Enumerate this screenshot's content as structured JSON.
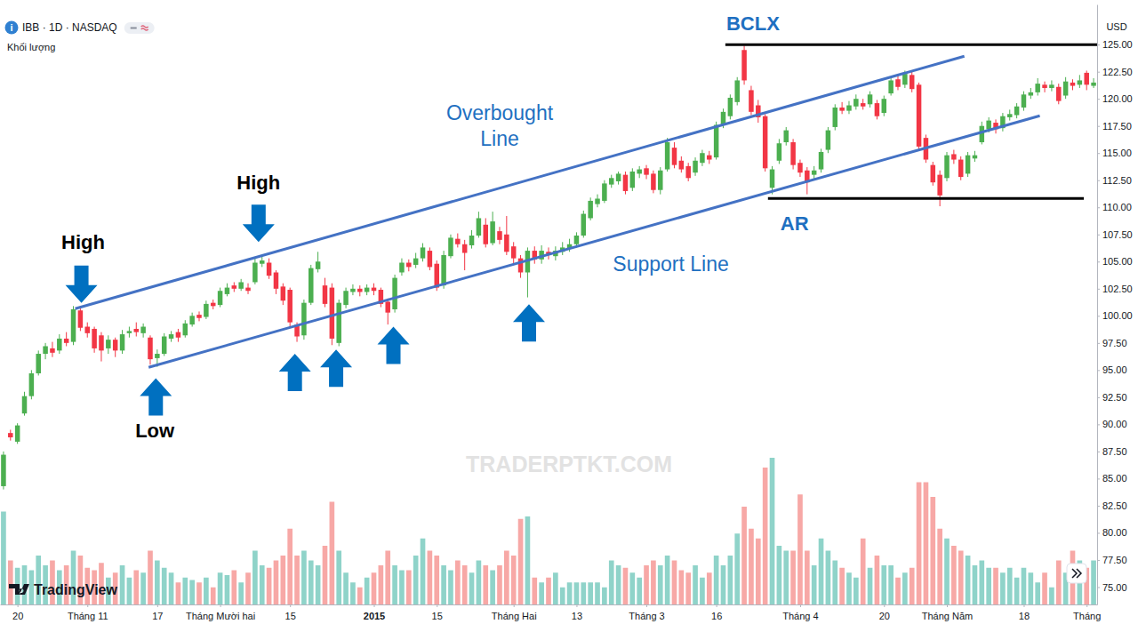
{
  "chart_data": {
    "type": "candlestick",
    "title": "IBB · 1D · NASDAQ",
    "icon": "i",
    "ylabel": "USD",
    "watermark": "TRADERPTKT.COM",
    "logo": "TradingView",
    "categories": [
      null,
      null,
      "20",
      null,
      null,
      null,
      null,
      null,
      null,
      null,
      null,
      null,
      "Tháng 11",
      null,
      null,
      null,
      null,
      null,
      null,
      null,
      null,
      null,
      "17",
      null,
      null,
      null,
      null,
      null,
      null,
      null,
      null,
      "Tháng Mười hai",
      null,
      null,
      null,
      null,
      null,
      null,
      null,
      null,
      null,
      "15",
      null,
      null,
      null,
      null,
      null,
      null,
      null,
      null,
      null,
      null,
      null,
      "2015",
      null,
      null,
      null,
      null,
      null,
      null,
      null,
      null,
      "15",
      null,
      null,
      null,
      null,
      null,
      null,
      null,
      null,
      null,
      null,
      "Tháng Hai",
      null,
      null,
      null,
      null,
      null,
      null,
      null,
      null,
      "13",
      null,
      null,
      null,
      null,
      null,
      null,
      null,
      null,
      null,
      "Tháng 3",
      null,
      null,
      null,
      null,
      null,
      null,
      null,
      null,
      null,
      "16",
      null,
      null,
      null,
      null,
      null,
      null,
      null,
      null,
      null,
      null,
      null,
      "Tháng 4",
      null,
      null,
      null,
      null,
      null,
      null,
      null,
      null,
      null,
      null,
      null,
      "20",
      null,
      null,
      null,
      null,
      null,
      null,
      null,
      null,
      "Tháng Năm",
      null,
      null,
      null,
      null,
      null,
      null,
      null,
      null,
      null,
      null,
      "18",
      null,
      null,
      null,
      null,
      null,
      null,
      null,
      null,
      "Tháng",
      null
    ],
    "series": [
      {
        "type": "candlestick",
        "open": [
          84.3,
          89.2,
          88.4,
          91,
          92.6,
          94.7,
          96.5,
          97,
          96.8,
          97.9,
          97.6,
          100.5,
          99,
          98.8,
          98.2,
          97,
          97.8,
          96.8,
          98.4,
          98.8,
          98.4,
          98,
          96.1,
          96.5,
          97.9,
          98.5,
          98.2,
          99.2,
          100.1,
          99.9,
          101.2,
          101,
          102,
          102.8,
          102.5,
          102.6,
          103.1,
          104.8,
          104.9,
          104,
          102.7,
          102.4,
          99.2,
          98.2,
          101.2,
          104.3,
          102.8,
          102.6,
          97.5,
          101,
          102.2,
          102.5,
          102.2,
          102.6,
          102.4,
          101.3,
          100.6,
          104,
          104.9,
          104.7,
          105.3,
          106,
          104.8,
          102.8,
          105.5,
          107.1,
          106.6,
          106.5,
          107.4,
          108.4,
          106.7,
          107.8,
          107.5,
          106.4,
          105.3,
          104,
          106,
          105.2,
          105.9,
          105.5,
          105.9,
          106.2,
          106.6,
          107.4,
          109,
          110.3,
          110.6,
          112.1,
          112.4,
          113,
          111.8,
          113.1,
          113.6,
          113.1,
          111.6,
          113.5,
          115.5,
          114.3,
          113.8,
          113.2,
          114.1,
          114.8,
          114.6,
          117.6,
          118.4,
          119.7,
          124.5,
          120.8,
          119.4,
          118.4,
          111.8,
          114.3,
          116,
          116,
          114.1,
          113.4,
          113,
          113.5,
          115.3,
          117.4,
          119.2,
          118.9,
          119.3,
          119.6,
          119.5,
          119.6,
          118.7,
          120.5,
          121.8,
          121.3,
          122.2,
          121.3,
          116.4,
          113.9,
          113,
          112.7,
          114.9,
          114.4,
          113.1,
          114.5,
          116,
          117.2,
          117.8,
          117.3,
          118.3,
          118.5,
          119.2,
          120.3,
          120.6,
          121.3,
          121,
          121.1,
          120.3,
          121.5,
          121.3,
          122.4,
          121.2
        ],
        "high": [
          87.5,
          89.5,
          90.1,
          93,
          95,
          96.8,
          97.5,
          97.6,
          98.3,
          98.5,
          100.9,
          100.9,
          99.4,
          99,
          98.5,
          98.2,
          98,
          98.7,
          99,
          99.4,
          99.3,
          98.2,
          96.9,
          98.4,
          98.6,
          98.8,
          99.6,
          100.3,
          100.4,
          101.4,
          101.5,
          102.6,
          103,
          103.1,
          103.4,
          103,
          105.3,
          105.5,
          105.3,
          104.2,
          103,
          102.6,
          99.4,
          101.5,
          104.7,
          105.9,
          103.5,
          103,
          101.5,
          102.6,
          102.9,
          102.8,
          102.9,
          103,
          102.6,
          101.6,
          103.8,
          105.3,
          105.2,
          105.8,
          106.7,
          106.3,
          105.1,
          106,
          107.5,
          107.6,
          107,
          107.9,
          109.6,
          109,
          109.6,
          108.2,
          109.2,
          106.8,
          105.6,
          106.3,
          106.4,
          106.5,
          106.3,
          106.4,
          106.8,
          107.1,
          107.7,
          109.7,
          110.9,
          111.2,
          112.5,
          113,
          113.3,
          113.3,
          113.6,
          113.8,
          113.9,
          113.4,
          113.7,
          116.4,
          116,
          114.7,
          114.1,
          114.6,
          115.3,
          115.2,
          117.9,
          119.1,
          120.4,
          122,
          124.9,
          121.2,
          119.9,
          118.6,
          113.8,
          116.3,
          117.4,
          116.3,
          114.4,
          113.7,
          113.8,
          115.4,
          117.4,
          119.5,
          119.7,
          119.8,
          120.4,
          120,
          120.7,
          119.9,
          120.3,
          122,
          122.2,
          122.6,
          122.5,
          121.5,
          116.7,
          114.2,
          113.4,
          115.1,
          115.3,
          114.7,
          115.1,
          115.2,
          117.9,
          118.3,
          118.1,
          118.7,
          119,
          119.6,
          120.7,
          121,
          121.9,
          121.6,
          121.7,
          121.4,
          122,
          121.8,
          122.2,
          122.6,
          121.9
        ],
        "low": [
          84,
          88.5,
          88.2,
          90.8,
          92.3,
          94.5,
          96,
          96.2,
          96.5,
          97.2,
          97.3,
          98.6,
          98,
          96.6,
          95.8,
          96.5,
          96.2,
          96.5,
          98,
          98.1,
          98,
          95.5,
          95.3,
          96.3,
          97.6,
          97.6,
          98,
          99,
          99.5,
          99.7,
          100.6,
          100.8,
          101.8,
          102.2,
          102.3,
          102,
          102.9,
          104.5,
          103.4,
          102,
          101,
          98.9,
          97.6,
          97.8,
          101,
          104,
          100.8,
          97.3,
          97.2,
          100.7,
          101.9,
          101.8,
          101.9,
          101.9,
          100.8,
          99.2,
          100.3,
          103.7,
          104.1,
          104.4,
          105,
          104.2,
          102.3,
          102.5,
          105.3,
          106.3,
          104.2,
          106.2,
          107.2,
          106.3,
          106.5,
          106.6,
          105.6,
          104.8,
          103.5,
          101.7,
          104.8,
          104.8,
          105.2,
          105.1,
          105.6,
          105.9,
          106.3,
          107.2,
          108.8,
          110,
          110.4,
          111.8,
          112.1,
          111.2,
          111.5,
          112.7,
          112.6,
          111.3,
          111.2,
          113.3,
          113.6,
          113.2,
          112.4,
          112.9,
          113.8,
          114,
          114.4,
          117.3,
          118.1,
          119.4,
          121.3,
          118.5,
          117.8,
          113.3,
          111.2,
          114,
          115.7,
          113.5,
          112.8,
          111.2,
          112.6,
          113.2,
          115,
          117.1,
          118.6,
          118.6,
          119,
          119,
          119.2,
          118.1,
          118.4,
          120.3,
          120.8,
          121,
          120.6,
          115.2,
          114.1,
          112,
          110.1,
          112.4,
          114,
          112.5,
          112.8,
          114.2,
          115.8,
          116.9,
          116.8,
          117,
          118,
          118.2,
          118.9,
          120,
          120.3,
          120.6,
          120.7,
          119.5,
          120,
          120.8,
          121,
          120.8,
          121
        ],
        "close": [
          87.2,
          88.8,
          89.9,
          92.6,
          94.7,
          96.5,
          97.2,
          96.6,
          97.9,
          97.5,
          100.6,
          98.9,
          98.4,
          97,
          96.8,
          97.8,
          96.8,
          98.3,
          98.6,
          98.5,
          99,
          96,
          96.5,
          98.1,
          98.3,
          98,
          99.3,
          100,
          99.8,
          101.1,
          100.9,
          102.3,
          102.6,
          102.5,
          103.1,
          102.3,
          104.9,
          105.1,
          103.7,
          102.5,
          101.4,
          99.4,
          98.1,
          101.2,
          104.4,
          105,
          101.1,
          97.9,
          101.2,
          102.3,
          102.5,
          102.2,
          102.6,
          102.3,
          101.1,
          100.3,
          103.5,
          104.9,
          104.5,
          105.3,
          106.3,
          104.5,
          102.6,
          105.6,
          107.2,
          106.6,
          105.8,
          107.4,
          109,
          106.6,
          108.7,
          107,
          105.9,
          105.3,
          104,
          106,
          105.2,
          106,
          105.6,
          106,
          106.3,
          106.6,
          107.4,
          109.4,
          110.6,
          110.8,
          112.2,
          112.7,
          113.1,
          111.5,
          113.3,
          113.5,
          113,
          111.6,
          113.4,
          116,
          113.9,
          113.5,
          112.7,
          114.3,
          115,
          114.4,
          117.6,
          118.8,
          120.1,
          121.7,
          121.7,
          118.8,
          118.3,
          113.6,
          113.5,
          115.9,
          117.1,
          113.9,
          113.2,
          112.3,
          113.4,
          115.1,
          117.1,
          119.2,
          118.9,
          119.4,
          120,
          119.3,
          120.4,
          118.4,
          120,
          121.7,
          121.1,
          122.3,
          120.9,
          115.6,
          114.4,
          112.3,
          111.1,
          114.8,
          114.4,
          112.8,
          114.8,
          114.8,
          117.5,
          118,
          117.2,
          118.4,
          118.6,
          119.3,
          120.4,
          120.6,
          121.4,
          121,
          121.3,
          119.8,
          121.6,
          121.2,
          121.7,
          121.3,
          121.5
        ]
      },
      {
        "name": "Khối lượng",
        "type": "bar",
        "axis": "y2",
        "values": [
          1.9,
          0.9,
          0.75,
          0.8,
          0.7,
          1.0,
          0.8,
          0.9,
          0.7,
          0.8,
          1.1,
          1.0,
          0.75,
          0.7,
          0.85,
          0.55,
          0.65,
          0.8,
          0.55,
          0.7,
          0.65,
          1.1,
          0.9,
          0.75,
          0.65,
          0.45,
          0.55,
          0.5,
          0.45,
          0.55,
          0.35,
          0.65,
          0.6,
          0.7,
          0.45,
          0.65,
          1.1,
          0.8,
          0.75,
          0.9,
          1.0,
          1.55,
          1.0,
          1.1,
          0.9,
          0.8,
          1.2,
          2.1,
          1.1,
          0.65,
          0.45,
          0.35,
          0.55,
          0.65,
          0.8,
          1.1,
          0.8,
          0.7,
          0.7,
          1.0,
          1.35,
          1.1,
          1.0,
          0.8,
          0.7,
          0.9,
          0.8,
          0.65,
          0.9,
          0.8,
          0.7,
          0.8,
          1.1,
          1.0,
          1.75,
          1.8,
          0.55,
          0.45,
          0.55,
          0.65,
          0.35,
          0.45,
          0.45,
          0.45,
          0.45,
          0.45,
          0.35,
          0.9,
          0.8,
          0.75,
          0.65,
          0.55,
          0.8,
          0.9,
          0.8,
          1.0,
          0.9,
          0.7,
          0.65,
          0.8,
          0.55,
          0.65,
          1.0,
          0.8,
          1.0,
          1.45,
          2.0,
          1.55,
          1.35,
          2.8,
          3.0,
          1.2,
          1.1,
          1.1,
          2.25,
          1.1,
          0.8,
          1.35,
          1.1,
          0.9,
          0.75,
          0.65,
          0.55,
          1.35,
          0.75,
          1.0,
          0.8,
          0.8,
          0.55,
          0.65,
          0.75,
          2.5,
          2.5,
          2.2,
          1.55,
          1.35,
          1.2,
          1.1,
          1.0,
          0.8,
          0.9,
          0.75,
          0.75,
          0.65,
          0.75,
          0.55,
          0.75,
          0.65,
          0.45,
          0.65,
          0.35,
          0.9,
          0.65,
          1.1,
          0.9,
          0.75,
          0.9
        ]
      }
    ],
    "ylim": [
      73.4,
      128.7
    ],
    "yticks": [
      {
        "value": 75,
        "label": "75.00"
      },
      {
        "value": 77.5,
        "label": "77.50"
      },
      {
        "value": 80,
        "label": "80.00"
      },
      {
        "value": 82.5,
        "label": "82.50"
      },
      {
        "value": 85,
        "label": "85.00"
      },
      {
        "value": 87.5,
        "label": "87.50"
      },
      {
        "value": 90,
        "label": "90.00"
      },
      {
        "value": 92.5,
        "label": "92.50"
      },
      {
        "value": 95,
        "label": "95.00"
      },
      {
        "value": 97.5,
        "label": "97.50"
      },
      {
        "value": 100,
        "label": "100.00"
      },
      {
        "value": 102.5,
        "label": "102.50"
      },
      {
        "value": 105,
        "label": "105.00"
      },
      {
        "value": 107.5,
        "label": "107.50"
      },
      {
        "value": 110,
        "label": "110.00"
      },
      {
        "value": 112.5,
        "label": "112.50"
      },
      {
        "value": 115,
        "label": "115.00"
      },
      {
        "value": 117.5,
        "label": "117.50"
      },
      {
        "value": 120,
        "label": "120.00"
      },
      {
        "value": 122.5,
        "label": "122.50"
      },
      {
        "value": 125,
        "label": "125.00"
      }
    ],
    "y2lim": [
      0,
      4
    ],
    "lines": [
      {
        "x": [
          10.26,
          137.5
        ],
        "y": [
          100.66,
          123.93
        ],
        "color": "#4472c4"
      },
      {
        "x": [
          20.77,
          148.3
        ],
        "y": [
          95.25,
          118.44
        ],
        "color": "#4472c4"
      },
      {
        "x": [
          103.3,
          157.8
        ],
        "y": [
          125,
          125
        ],
        "color": "#000000"
      },
      {
        "x": [
          109.4,
          154.6
        ],
        "y": [
          110.82,
          110.82
        ],
        "color": "#000000"
      }
    ],
    "arrows": {
      "down": [
        {
          "x": 11.15,
          "y": 101.2
        },
        {
          "x": 36.5,
          "y": 106.8
        }
      ],
      "up": [
        {
          "x": 21.8,
          "y": 94.26
        },
        {
          "x": 41.7,
          "y": 96.5
        },
        {
          "x": 47.6,
          "y": 96.9
        },
        {
          "x": 55.8,
          "y": 99.0
        },
        {
          "x": 75.2,
          "y": 101.07
        }
      ]
    },
    "annotations": [
      {
        "text": "High",
        "x": 11.4,
        "y": 106.8,
        "color": "#000000"
      },
      {
        "text": "High",
        "x": 36.5,
        "y": 112.3,
        "color": "#000000"
      },
      {
        "text": "Low",
        "x": 21.66,
        "y": 89.43,
        "color": "#000000"
      },
      {
        "text": "Overbought Line",
        "x": 71.0,
        "y": 117.5,
        "color": "#1f70c1"
      },
      {
        "text": "Support Line",
        "x": 95.5,
        "y": 104.75,
        "color": "#1f70c1"
      },
      {
        "text": "BCLX",
        "x": 107.25,
        "y": 126.9,
        "color": "#1f70c1"
      },
      {
        "text": "AR",
        "x": 113.2,
        "y": 108.5,
        "color": "#1f70c1"
      }
    ]
  }
}
